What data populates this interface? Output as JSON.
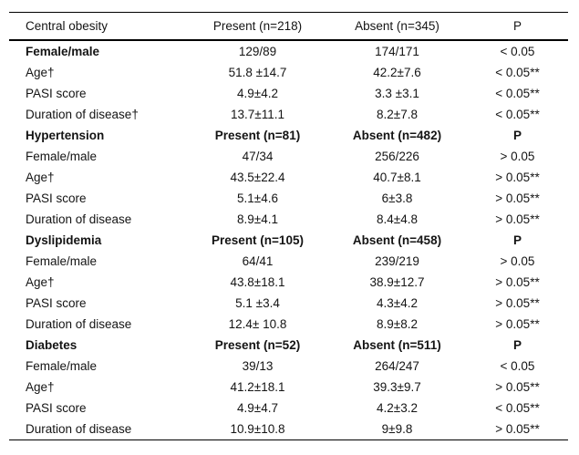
{
  "table": {
    "header": {
      "label": "Central obesity",
      "present": "Present (n=218)",
      "absent": "Absent (n=345)",
      "p": "P"
    },
    "rows": [
      {
        "label": "Female/male",
        "present": "129/89",
        "absent": "174/171",
        "p": "< 0.05",
        "labelBold": true,
        "section": false
      },
      {
        "label": "Age†",
        "present": "51.8 ±14.7",
        "absent": "42.2±7.6",
        "p": "< 0.05**",
        "labelBold": false,
        "section": false
      },
      {
        "label": "PASI score",
        "present": "4.9±4.2",
        "absent": "3.3 ±3.1",
        "p": "< 0.05**",
        "labelBold": false,
        "section": false
      },
      {
        "label": "Duration of disease†",
        "present": "13.7±11.1",
        "absent": "8.2±7.8",
        "p": "< 0.05**",
        "labelBold": false,
        "section": false
      },
      {
        "label": "Hypertension",
        "present": "Present (n=81)",
        "absent": "Absent (n=482)",
        "p": "P",
        "labelBold": true,
        "section": true
      },
      {
        "label": "Female/male",
        "present": "47/34",
        "absent": "256/226",
        "p": "> 0.05",
        "labelBold": false,
        "section": false
      },
      {
        "label": "Age†",
        "present": "43.5±22.4",
        "absent": "40.7±8.1",
        "p": "> 0.05**",
        "labelBold": false,
        "section": false
      },
      {
        "label": "PASI score",
        "present": "5.1±4.6",
        "absent": "6±3.8",
        "p": "> 0.05**",
        "labelBold": false,
        "section": false
      },
      {
        "label": "Duration of disease",
        "present": "8.9±4.1",
        "absent": "8.4±4.8",
        "p": "> 0.05**",
        "labelBold": false,
        "section": false
      },
      {
        "label": "Dyslipidemia",
        "present": "Present (n=105)",
        "absent": "Absent (n=458)",
        "p": "P",
        "labelBold": true,
        "section": true
      },
      {
        "label": "Female/male",
        "present": "64/41",
        "absent": "239/219",
        "p": "> 0.05",
        "labelBold": false,
        "section": false
      },
      {
        "label": "Age†",
        "present": "43.8±18.1",
        "absent": "38.9±12.7",
        "p": "> 0.05**",
        "labelBold": false,
        "section": false
      },
      {
        "label": "PASI score",
        "present": "5.1 ±3.4",
        "absent": "4.3±4.2",
        "p": "> 0.05**",
        "labelBold": false,
        "section": false
      },
      {
        "label": "Duration of disease",
        "present": "12.4± 10.8",
        "absent": "8.9±8.2",
        "p": "> 0.05**",
        "labelBold": false,
        "section": false
      },
      {
        "label": "Diabetes",
        "present": "Present (n=52)",
        "absent": "Absent (n=511)",
        "p": "P",
        "labelBold": true,
        "section": true
      },
      {
        "label": "Female/male",
        "present": "39/13",
        "absent": "264/247",
        "p": "< 0.05",
        "labelBold": false,
        "section": false
      },
      {
        "label": "Age†",
        "present": "41.2±18.1",
        "absent": "39.3±9.7",
        "p": "> 0.05**",
        "labelBold": false,
        "section": false
      },
      {
        "label": "PASI score",
        "present": "4.9±4.7",
        "absent": "4.2±3.2",
        "p": "< 0.05**",
        "labelBold": false,
        "section": false
      },
      {
        "label": "Duration of disease",
        "present": "10.9±10.8",
        "absent": "9±9.8",
        "p": "> 0.05**",
        "labelBold": false,
        "section": false
      }
    ]
  }
}
